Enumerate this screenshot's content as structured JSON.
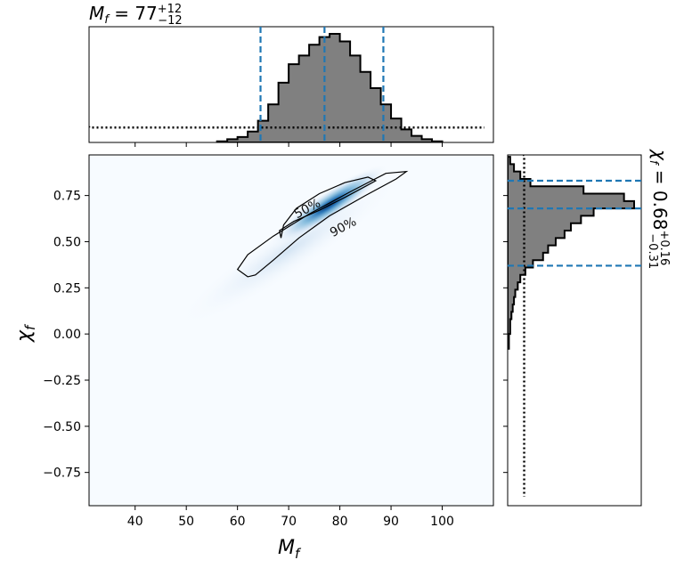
{
  "chart_data": [
    {
      "type": "heatmap",
      "panel": "joint",
      "xlim": [
        31,
        110
      ],
      "ylim": [
        -0.93,
        0.97
      ],
      "xticks": [
        40,
        50,
        60,
        70,
        80,
        90,
        100
      ],
      "yticks": [
        0.75,
        0.5,
        0.25,
        0.0,
        -0.25,
        -0.5,
        -0.75
      ],
      "xtick_labels": [
        "40",
        "50",
        "60",
        "70",
        "80",
        "90",
        "100"
      ],
      "ytick_labels": [
        "0.75",
        "0.50",
        "0.25",
        "0.00",
        "−0.25",
        "−0.50",
        "−0.75"
      ],
      "xlabel": "M",
      "xlabel_sub": "f",
      "ylabel": "χ",
      "ylabel_sub": "f",
      "colormap": "Blues",
      "density_peak": {
        "x": 78,
        "y": 0.7
      },
      "contours": [
        {
          "label": "50%",
          "points": [
            [
              68.5,
              0.52
            ],
            [
              68.2,
              0.56
            ],
            [
              71,
              0.61
            ],
            [
              76,
              0.67
            ],
            [
              81,
              0.74
            ],
            [
              85,
              0.8
            ],
            [
              87,
              0.83
            ],
            [
              85.5,
              0.85
            ],
            [
              81,
              0.82
            ],
            [
              76,
              0.76
            ],
            [
              71.5,
              0.68
            ],
            [
              69,
              0.59
            ],
            [
              68.5,
              0.52
            ]
          ]
        },
        {
          "label": "90%",
          "points": [
            [
              62,
              0.31
            ],
            [
              60,
              0.35
            ],
            [
              62,
              0.43
            ],
            [
              67,
              0.53
            ],
            [
              74,
              0.65
            ],
            [
              82,
              0.77
            ],
            [
              89,
              0.87
            ],
            [
              93,
              0.88
            ],
            [
              91,
              0.84
            ],
            [
              85,
              0.75
            ],
            [
              78,
              0.64
            ],
            [
              72,
              0.52
            ],
            [
              67,
              0.4
            ],
            [
              63.5,
              0.32
            ],
            [
              62,
              0.31
            ]
          ]
        }
      ],
      "contour_labels": [
        {
          "text": "50%",
          "x": 74,
          "y": 0.66
        },
        {
          "text": "90%",
          "x": 81,
          "y": 0.56
        }
      ]
    },
    {
      "type": "bar",
      "panel": "top-marginal",
      "title": "M",
      "title_sub": "f",
      "title_value": "= 77",
      "title_sup": "+12",
      "title_sub2": "−12",
      "x_bin_edges": [
        56,
        58,
        60,
        62,
        64,
        66,
        68,
        70,
        72,
        74,
        76,
        78,
        80,
        82,
        84,
        86,
        88,
        90,
        92,
        94,
        96,
        98,
        100
      ],
      "values": [
        0.01,
        0.03,
        0.05,
        0.1,
        0.2,
        0.35,
        0.55,
        0.72,
        0.8,
        0.9,
        0.97,
        1.0,
        0.93,
        0.8,
        0.65,
        0.5,
        0.35,
        0.22,
        0.12,
        0.06,
        0.03,
        0.01
      ],
      "prior_line": "dotted",
      "prior_level": 0.15,
      "quantile_lines": [
        64.5,
        77,
        88.5
      ],
      "quantile_color": "#1f77b4"
    },
    {
      "type": "bar",
      "panel": "right-marginal",
      "title": "χ",
      "title_sub": "f",
      "title_value": "= 0.68",
      "title_sup": "+0.16",
      "title_sub2": "−0.31",
      "y_bin_edges": [
        0.96,
        0.92,
        0.88,
        0.84,
        0.8,
        0.76,
        0.72,
        0.68,
        0.64,
        0.6,
        0.56,
        0.52,
        0.48,
        0.44,
        0.4,
        0.36,
        0.32,
        0.28,
        0.24,
        0.2,
        0.16,
        0.12,
        0.08,
        0.04,
        0.0,
        -0.04,
        -0.08
      ],
      "values": [
        0.02,
        0.05,
        0.1,
        0.18,
        0.6,
        0.92,
        1.0,
        0.68,
        0.58,
        0.5,
        0.45,
        0.38,
        0.32,
        0.28,
        0.2,
        0.14,
        0.1,
        0.08,
        0.06,
        0.05,
        0.04,
        0.03,
        0.02,
        0.02,
        0.01,
        0.01
      ],
      "prior_line": "dotted",
      "prior_level": 0.12,
      "quantile_lines": [
        0.83,
        0.68,
        0.37
      ],
      "quantile_color": "#1f77b4"
    }
  ]
}
